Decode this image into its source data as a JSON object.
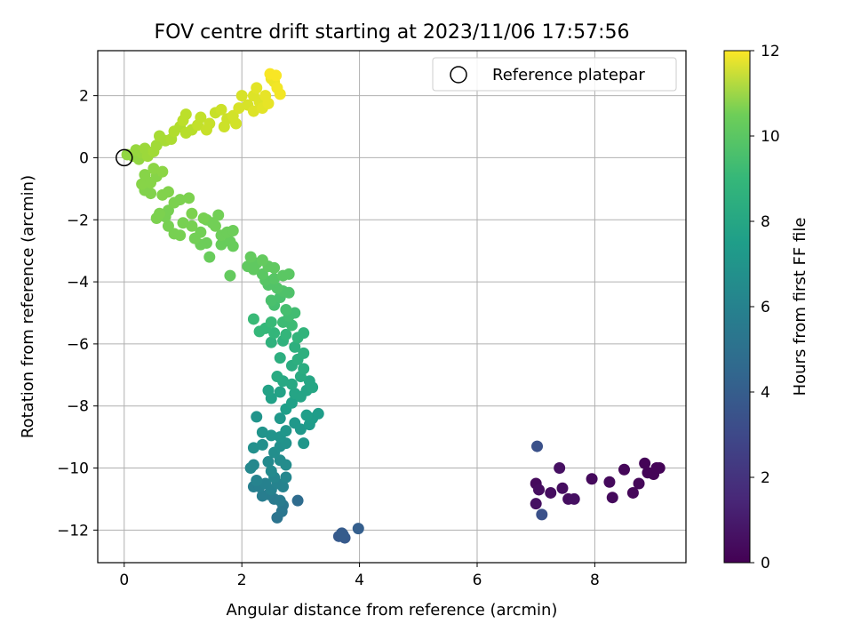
{
  "chart_data": {
    "type": "scatter",
    "title": "FOV centre drift starting at 2023/11/06 17:57:56",
    "xlabel": "Angular distance from reference (arcmin)",
    "ylabel": "Rotation from reference (arcmin)",
    "xlim": [
      -0.45,
      9.55
    ],
    "ylim": [
      -13.05,
      3.45
    ],
    "xticks": [
      0,
      2,
      4,
      6,
      8
    ],
    "yticks": [
      -12,
      -10,
      -8,
      -6,
      -4,
      -2,
      0,
      2
    ],
    "grid": true,
    "legend": {
      "position": "top-right",
      "entries": [
        {
          "label": "Reference platepar",
          "marker": "open-circle"
        }
      ]
    },
    "reference_point": {
      "x": 0,
      "y": 0
    },
    "colorbar": {
      "label": "Hours from first FF file",
      "range": [
        0,
        12
      ],
      "ticks": [
        0,
        2,
        4,
        6,
        8,
        10,
        12
      ],
      "colormap": "viridis"
    },
    "series": [
      {
        "color_by": "hours",
        "points": [
          {
            "x": 7.0,
            "y": -10.5,
            "c": 0.3
          },
          {
            "x": 7.05,
            "y": -10.7,
            "c": 0.4
          },
          {
            "x": 7.25,
            "y": -10.8,
            "c": 0.4
          },
          {
            "x": 7.4,
            "y": -10.0,
            "c": 0.5
          },
          {
            "x": 7.45,
            "y": -10.65,
            "c": 0.4
          },
          {
            "x": 7.55,
            "y": -11.0,
            "c": 0.4
          },
          {
            "x": 7.65,
            "y": -11.0,
            "c": 0.5
          },
          {
            "x": 7.0,
            "y": -11.15,
            "c": 0.5
          },
          {
            "x": 7.95,
            "y": -10.35,
            "c": 0.3
          },
          {
            "x": 8.25,
            "y": -10.45,
            "c": 0.3
          },
          {
            "x": 8.3,
            "y": -10.95,
            "c": 0.3
          },
          {
            "x": 8.5,
            "y": -10.05,
            "c": 0.2
          },
          {
            "x": 8.65,
            "y": -10.8,
            "c": 0.2
          },
          {
            "x": 8.75,
            "y": -10.5,
            "c": 0.2
          },
          {
            "x": 8.85,
            "y": -9.85,
            "c": 0.1
          },
          {
            "x": 8.9,
            "y": -10.15,
            "c": 0.1
          },
          {
            "x": 9.0,
            "y": -10.2,
            "c": 0.1
          },
          {
            "x": 9.05,
            "y": -10.0,
            "c": 0.1
          },
          {
            "x": 9.1,
            "y": -10.0,
            "c": 0.1
          },
          {
            "x": 7.02,
            "y": -9.3,
            "c": 3.0
          },
          {
            "x": 7.1,
            "y": -11.5,
            "c": 3.0
          },
          {
            "x": 3.65,
            "y": -12.2,
            "c": 3.4
          },
          {
            "x": 3.7,
            "y": -12.1,
            "c": 3.5
          },
          {
            "x": 3.75,
            "y": -12.25,
            "c": 3.4
          },
          {
            "x": 3.72,
            "y": -12.15,
            "c": 3.5
          },
          {
            "x": 3.98,
            "y": -11.95,
            "c": 3.6
          },
          {
            "x": 2.95,
            "y": -11.05,
            "c": 4.2
          },
          {
            "x": 2.6,
            "y": -11.6,
            "c": 4.6
          },
          {
            "x": 2.68,
            "y": -11.4,
            "c": 4.7
          },
          {
            "x": 2.7,
            "y": -11.2,
            "c": 4.8
          },
          {
            "x": 2.55,
            "y": -11.0,
            "c": 4.9
          },
          {
            "x": 2.65,
            "y": -11.05,
            "c": 5.0
          },
          {
            "x": 2.45,
            "y": -10.85,
            "c": 5.0
          },
          {
            "x": 2.35,
            "y": -10.9,
            "c": 5.1
          },
          {
            "x": 2.2,
            "y": -10.6,
            "c": 5.2
          },
          {
            "x": 2.3,
            "y": -10.6,
            "c": 5.2
          },
          {
            "x": 2.4,
            "y": -10.5,
            "c": 5.3
          },
          {
            "x": 2.5,
            "y": -10.7,
            "c": 5.3
          },
          {
            "x": 2.6,
            "y": -10.5,
            "c": 5.4
          },
          {
            "x": 2.7,
            "y": -10.6,
            "c": 5.4
          },
          {
            "x": 2.75,
            "y": -10.3,
            "c": 5.5
          },
          {
            "x": 2.55,
            "y": -10.3,
            "c": 5.5
          },
          {
            "x": 2.25,
            "y": -10.4,
            "c": 5.4
          },
          {
            "x": 2.15,
            "y": -10.0,
            "c": 5.6
          },
          {
            "x": 2.2,
            "y": -9.9,
            "c": 5.6
          },
          {
            "x": 2.45,
            "y": -9.8,
            "c": 5.7
          },
          {
            "x": 2.5,
            "y": -10.1,
            "c": 5.7
          },
          {
            "x": 2.65,
            "y": -9.75,
            "c": 5.8
          },
          {
            "x": 2.75,
            "y": -9.9,
            "c": 5.8
          },
          {
            "x": 2.55,
            "y": -9.5,
            "c": 5.9
          },
          {
            "x": 2.65,
            "y": -9.3,
            "c": 6.0
          },
          {
            "x": 2.35,
            "y": -9.25,
            "c": 6.0
          },
          {
            "x": 2.2,
            "y": -9.35,
            "c": 6.0
          },
          {
            "x": 2.75,
            "y": -9.2,
            "c": 6.1
          },
          {
            "x": 2.65,
            "y": -9.0,
            "c": 6.2
          },
          {
            "x": 2.5,
            "y": -8.95,
            "c": 6.2
          },
          {
            "x": 2.35,
            "y": -8.85,
            "c": 6.2
          },
          {
            "x": 2.75,
            "y": -8.8,
            "c": 6.3
          },
          {
            "x": 2.25,
            "y": -8.35,
            "c": 6.2
          },
          {
            "x": 3.05,
            "y": -9.2,
            "c": 6.3
          },
          {
            "x": 3.0,
            "y": -8.75,
            "c": 6.4
          },
          {
            "x": 2.9,
            "y": -8.55,
            "c": 6.4
          },
          {
            "x": 2.65,
            "y": -8.4,
            "c": 6.4
          },
          {
            "x": 3.15,
            "y": -8.6,
            "c": 6.5
          },
          {
            "x": 3.2,
            "y": -8.4,
            "c": 6.6
          },
          {
            "x": 3.3,
            "y": -8.25,
            "c": 6.6
          },
          {
            "x": 3.1,
            "y": -8.3,
            "c": 6.7
          },
          {
            "x": 2.75,
            "y": -8.1,
            "c": 6.7
          },
          {
            "x": 2.85,
            "y": -7.9,
            "c": 6.8
          },
          {
            "x": 2.5,
            "y": -7.75,
            "c": 6.8
          },
          {
            "x": 2.45,
            "y": -7.5,
            "c": 6.9
          },
          {
            "x": 2.65,
            "y": -7.55,
            "c": 6.9
          },
          {
            "x": 2.9,
            "y": -7.6,
            "c": 7.0
          },
          {
            "x": 3.0,
            "y": -7.7,
            "c": 7.0
          },
          {
            "x": 3.1,
            "y": -7.5,
            "c": 7.0
          },
          {
            "x": 3.2,
            "y": -7.4,
            "c": 7.1
          },
          {
            "x": 3.15,
            "y": -7.2,
            "c": 7.1
          },
          {
            "x": 2.85,
            "y": -7.3,
            "c": 7.2
          },
          {
            "x": 2.7,
            "y": -7.2,
            "c": 7.2
          },
          {
            "x": 2.6,
            "y": -7.05,
            "c": 7.3
          },
          {
            "x": 3.0,
            "y": -7.05,
            "c": 7.3
          },
          {
            "x": 3.05,
            "y": -6.8,
            "c": 7.4
          },
          {
            "x": 2.85,
            "y": -6.7,
            "c": 7.4
          },
          {
            "x": 2.95,
            "y": -6.5,
            "c": 7.5
          },
          {
            "x": 2.65,
            "y": -6.45,
            "c": 7.5
          },
          {
            "x": 3.05,
            "y": -6.3,
            "c": 7.6
          },
          {
            "x": 2.9,
            "y": -6.1,
            "c": 7.6
          },
          {
            "x": 2.5,
            "y": -5.95,
            "c": 7.7
          },
          {
            "x": 2.7,
            "y": -5.9,
            "c": 7.7
          },
          {
            "x": 2.95,
            "y": -5.8,
            "c": 7.8
          },
          {
            "x": 3.05,
            "y": -5.65,
            "c": 7.8
          },
          {
            "x": 2.75,
            "y": -5.7,
            "c": 7.9
          },
          {
            "x": 2.55,
            "y": -5.65,
            "c": 7.9
          },
          {
            "x": 2.3,
            "y": -5.6,
            "c": 8.0
          },
          {
            "x": 2.4,
            "y": -5.5,
            "c": 8.0
          },
          {
            "x": 2.2,
            "y": -5.2,
            "c": 8.1
          },
          {
            "x": 2.5,
            "y": -5.3,
            "c": 8.1
          },
          {
            "x": 2.7,
            "y": -5.3,
            "c": 8.2
          },
          {
            "x": 2.85,
            "y": -5.4,
            "c": 8.2
          },
          {
            "x": 2.8,
            "y": -5.1,
            "c": 8.3
          },
          {
            "x": 2.9,
            "y": -5.0,
            "c": 8.3
          },
          {
            "x": 2.75,
            "y": -4.9,
            "c": 8.4
          },
          {
            "x": 2.55,
            "y": -4.75,
            "c": 8.4
          },
          {
            "x": 2.5,
            "y": -4.6,
            "c": 8.5
          },
          {
            "x": 2.65,
            "y": -4.5,
            "c": 8.5
          },
          {
            "x": 2.8,
            "y": -4.35,
            "c": 8.6
          },
          {
            "x": 2.7,
            "y": -4.3,
            "c": 8.6
          },
          {
            "x": 2.6,
            "y": -4.2,
            "c": 8.7
          },
          {
            "x": 2.45,
            "y": -4.1,
            "c": 8.7
          },
          {
            "x": 2.4,
            "y": -3.95,
            "c": 8.8
          },
          {
            "x": 2.55,
            "y": -3.9,
            "c": 8.8
          },
          {
            "x": 2.7,
            "y": -3.8,
            "c": 8.9
          },
          {
            "x": 2.8,
            "y": -3.75,
            "c": 8.9
          },
          {
            "x": 2.35,
            "y": -3.75,
            "c": 8.9
          },
          {
            "x": 2.2,
            "y": -3.6,
            "c": 9.0
          },
          {
            "x": 2.1,
            "y": -3.5,
            "c": 9.0
          },
          {
            "x": 2.25,
            "y": -3.4,
            "c": 9.0
          },
          {
            "x": 2.45,
            "y": -3.5,
            "c": 9.0
          },
          {
            "x": 2.55,
            "y": -3.55,
            "c": 9.0
          },
          {
            "x": 2.35,
            "y": -3.3,
            "c": 9.1
          },
          {
            "x": 2.15,
            "y": -3.2,
            "c": 9.1
          },
          {
            "x": 1.8,
            "y": -3.8,
            "c": 9.1
          },
          {
            "x": 1.45,
            "y": -3.2,
            "c": 9.2
          },
          {
            "x": 1.65,
            "y": -2.8,
            "c": 9.2
          },
          {
            "x": 1.8,
            "y": -2.7,
            "c": 9.2
          },
          {
            "x": 1.85,
            "y": -2.85,
            "c": 9.2
          },
          {
            "x": 1.65,
            "y": -2.5,
            "c": 9.3
          },
          {
            "x": 1.75,
            "y": -2.4,
            "c": 9.3
          },
          {
            "x": 1.85,
            "y": -2.35,
            "c": 9.3
          },
          {
            "x": 1.4,
            "y": -2.75,
            "c": 9.3
          },
          {
            "x": 1.3,
            "y": -2.8,
            "c": 9.3
          },
          {
            "x": 1.2,
            "y": -2.6,
            "c": 9.4
          },
          {
            "x": 1.3,
            "y": -2.4,
            "c": 9.4
          },
          {
            "x": 1.55,
            "y": -2.2,
            "c": 9.4
          },
          {
            "x": 1.4,
            "y": -2.0,
            "c": 9.4
          },
          {
            "x": 1.5,
            "y": -2.1,
            "c": 9.4
          },
          {
            "x": 1.6,
            "y": -1.85,
            "c": 9.4
          },
          {
            "x": 1.35,
            "y": -1.95,
            "c": 9.5
          },
          {
            "x": 1.15,
            "y": -2.2,
            "c": 9.5
          },
          {
            "x": 1.0,
            "y": -2.1,
            "c": 9.5
          },
          {
            "x": 0.95,
            "y": -2.5,
            "c": 9.5
          },
          {
            "x": 0.85,
            "y": -2.45,
            "c": 9.5
          },
          {
            "x": 0.75,
            "y": -2.2,
            "c": 9.5
          },
          {
            "x": 0.7,
            "y": -1.9,
            "c": 9.5
          },
          {
            "x": 0.75,
            "y": -1.7,
            "c": 9.5
          },
          {
            "x": 0.85,
            "y": -1.45,
            "c": 9.6
          },
          {
            "x": 1.15,
            "y": -1.8,
            "c": 9.6
          },
          {
            "x": 0.55,
            "y": -1.95,
            "c": 9.6
          },
          {
            "x": 0.6,
            "y": -1.8,
            "c": 9.6
          },
          {
            "x": 1.1,
            "y": -1.3,
            "c": 9.6
          },
          {
            "x": 0.95,
            "y": -1.35,
            "c": 9.6
          },
          {
            "x": 0.75,
            "y": -1.1,
            "c": 9.7
          },
          {
            "x": 0.65,
            "y": -1.2,
            "c": 9.7
          },
          {
            "x": 0.45,
            "y": -1.15,
            "c": 9.7
          },
          {
            "x": 0.35,
            "y": -1.05,
            "c": 9.7
          },
          {
            "x": 0.3,
            "y": -0.85,
            "c": 9.8
          },
          {
            "x": 0.45,
            "y": -0.8,
            "c": 9.8
          },
          {
            "x": 0.55,
            "y": -0.6,
            "c": 9.8
          },
          {
            "x": 0.35,
            "y": -0.55,
            "c": 9.8
          },
          {
            "x": 0.5,
            "y": -0.35,
            "c": 9.9
          },
          {
            "x": 0.65,
            "y": -0.45,
            "c": 9.9
          },
          {
            "x": 0.05,
            "y": 0.1,
            "c": 10.0
          },
          {
            "x": 0.15,
            "y": 0.05,
            "c": 10.0
          },
          {
            "x": 0.25,
            "y": -0.05,
            "c": 10.0
          },
          {
            "x": 0.3,
            "y": 0.15,
            "c": 10.1
          },
          {
            "x": 0.2,
            "y": 0.25,
            "c": 10.1
          },
          {
            "x": 0.35,
            "y": 0.3,
            "c": 10.2
          },
          {
            "x": 0.4,
            "y": 0.05,
            "c": 10.2
          },
          {
            "x": 0.5,
            "y": 0.2,
            "c": 10.3
          },
          {
            "x": 0.55,
            "y": 0.4,
            "c": 10.3
          },
          {
            "x": 0.7,
            "y": 0.55,
            "c": 10.4
          },
          {
            "x": 0.6,
            "y": 0.7,
            "c": 10.4
          },
          {
            "x": 0.8,
            "y": 0.6,
            "c": 10.5
          },
          {
            "x": 0.85,
            "y": 0.85,
            "c": 10.6
          },
          {
            "x": 0.95,
            "y": 1.0,
            "c": 10.6
          },
          {
            "x": 1.05,
            "y": 0.8,
            "c": 10.7
          },
          {
            "x": 1.15,
            "y": 0.9,
            "c": 10.7
          },
          {
            "x": 1.0,
            "y": 1.2,
            "c": 10.8
          },
          {
            "x": 1.05,
            "y": 1.4,
            "c": 10.8
          },
          {
            "x": 1.25,
            "y": 1.05,
            "c": 10.9
          },
          {
            "x": 1.3,
            "y": 1.3,
            "c": 10.9
          },
          {
            "x": 1.45,
            "y": 1.1,
            "c": 11.0
          },
          {
            "x": 1.4,
            "y": 0.9,
            "c": 11.0
          },
          {
            "x": 1.55,
            "y": 1.45,
            "c": 11.0
          },
          {
            "x": 1.65,
            "y": 1.55,
            "c": 11.1
          },
          {
            "x": 1.75,
            "y": 1.25,
            "c": 11.1
          },
          {
            "x": 1.7,
            "y": 1.0,
            "c": 11.1
          },
          {
            "x": 1.85,
            "y": 1.35,
            "c": 11.2
          },
          {
            "x": 1.9,
            "y": 1.1,
            "c": 11.2
          },
          {
            "x": 1.95,
            "y": 1.6,
            "c": 11.3
          },
          {
            "x": 2.0,
            "y": 2.0,
            "c": 11.3
          },
          {
            "x": 2.1,
            "y": 1.7,
            "c": 11.3
          },
          {
            "x": 2.2,
            "y": 1.5,
            "c": 11.4
          },
          {
            "x": 2.3,
            "y": 1.8,
            "c": 11.4
          },
          {
            "x": 2.2,
            "y": 2.0,
            "c": 11.4
          },
          {
            "x": 2.25,
            "y": 2.25,
            "c": 11.5
          },
          {
            "x": 2.35,
            "y": 1.6,
            "c": 11.5
          },
          {
            "x": 2.45,
            "y": 1.75,
            "c": 11.6
          },
          {
            "x": 2.4,
            "y": 2.0,
            "c": 11.6
          },
          {
            "x": 2.5,
            "y": 2.55,
            "c": 11.7
          },
          {
            "x": 2.55,
            "y": 2.45,
            "c": 11.7
          },
          {
            "x": 2.6,
            "y": 2.25,
            "c": 11.8
          },
          {
            "x": 2.65,
            "y": 2.05,
            "c": 11.8
          },
          {
            "x": 2.48,
            "y": 2.7,
            "c": 11.9
          },
          {
            "x": 2.58,
            "y": 2.65,
            "c": 11.9
          }
        ]
      }
    ]
  }
}
